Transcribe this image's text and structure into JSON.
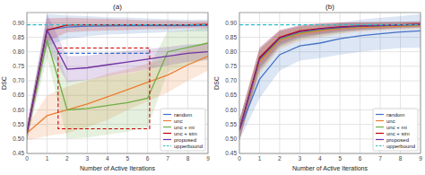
{
  "chart_data": [
    {
      "type": "line",
      "title": "(a)",
      "x_label": "Number of Active Iterations",
      "y_label": "DSC",
      "x": [
        0,
        1,
        2,
        3,
        4,
        5,
        6,
        7,
        8,
        9
      ],
      "xlim": [
        0,
        9
      ],
      "ylim": [
        0.45,
        0.935
      ],
      "xticks": [
        0,
        1,
        2,
        3,
        4,
        5,
        6,
        7,
        8,
        9
      ],
      "yticks": [
        0.45,
        {
          "value": 0.5,
          "label": "0.50"
        },
        0.55,
        {
          "value": 0.6,
          "label": "0.60"
        },
        0.65,
        {
          "value": 0.7,
          "label": "0.70"
        },
        0.75,
        {
          "value": 0.8,
          "label": "0.80"
        },
        0.85,
        {
          "value": 0.9,
          "label": "0.90"
        }
      ],
      "grid": true,
      "legend": "lower right",
      "series": [
        {
          "name": "random",
          "color": "#4472C4",
          "values": [
            0.52,
            0.875,
            0.885,
            0.888,
            0.889,
            0.89,
            0.89,
            0.89,
            0.89,
            0.891
          ],
          "std": [
            0.025,
            0.055,
            0.04,
            0.035,
            0.03,
            0.028,
            0.025,
            0.022,
            0.02,
            0.02
          ]
        },
        {
          "name": "unc",
          "color": "#ED7D31",
          "values": [
            0.52,
            0.58,
            0.6,
            0.62,
            0.645,
            0.67,
            0.695,
            0.72,
            0.755,
            0.785
          ],
          "std": [
            0.025,
            0.07,
            0.08,
            0.08,
            0.08,
            0.07,
            0.065,
            0.06,
            0.055,
            0.05
          ]
        },
        {
          "name": "unc + mi",
          "color": "#70AD47",
          "values": [
            0.52,
            0.84,
            0.6,
            0.605,
            0.615,
            0.625,
            0.64,
            0.8,
            0.815,
            0.83
          ],
          "std": [
            0.025,
            0.06,
            0.1,
            0.1,
            0.1,
            0.1,
            0.1,
            0.07,
            0.06,
            0.055
          ]
        },
        {
          "name": "unc + sim",
          "color": "#C00000",
          "values": [
            0.52,
            0.875,
            0.892,
            0.893,
            0.893,
            0.893,
            0.893,
            0.893,
            0.893,
            0.894
          ],
          "std": [
            0.025,
            0.04,
            0.025,
            0.022,
            0.02,
            0.018,
            0.015,
            0.015,
            0.012,
            0.012
          ]
        },
        {
          "name": "proposed",
          "color": "#7030A0",
          "values": [
            0.52,
            0.875,
            0.74,
            0.745,
            0.755,
            0.765,
            0.775,
            0.785,
            0.795,
            0.8
          ],
          "std": [
            0.025,
            0.055,
            0.045,
            0.042,
            0.04,
            0.038,
            0.035,
            0.032,
            0.03,
            0.028
          ]
        }
      ],
      "upperbound": {
        "name": "upperbound",
        "value": 0.893,
        "color": "#2BBCCA",
        "line_style": "dashed"
      },
      "annotations": [
        {
          "type": "rect",
          "x": [
            1.55,
            6.1
          ],
          "y": [
            0.535,
            0.813
          ],
          "color": "#CC0000",
          "line_style": "dashed"
        },
        {
          "type": "segment",
          "x": [
            1.55,
            6.1
          ],
          "y": [
            0.795,
            0.795
          ],
          "color": "#3366CC",
          "line_style": "dashed"
        }
      ]
    },
    {
      "type": "line",
      "title": "(b)",
      "x_label": "Number of Active Iterations",
      "y_label": "DSC",
      "x": [
        0,
        1,
        2,
        3,
        4,
        5,
        6,
        7,
        8,
        9
      ],
      "xlim": [
        0,
        9
      ],
      "ylim": [
        0.45,
        0.935
      ],
      "xticks": [
        0,
        1,
        2,
        3,
        4,
        5,
        6,
        7,
        8,
        9
      ],
      "yticks": [
        0.45,
        {
          "value": 0.5,
          "label": "0.50"
        },
        0.55,
        {
          "value": 0.6,
          "label": "0.60"
        },
        0.65,
        {
          "value": 0.7,
          "label": "0.70"
        },
        0.75,
        {
          "value": 0.8,
          "label": "0.80"
        },
        0.85,
        {
          "value": 0.9,
          "label": "0.90"
        }
      ],
      "grid": true,
      "legend": "lower right",
      "series": [
        {
          "name": "random",
          "color": "#4472C4",
          "values": [
            0.53,
            0.705,
            0.79,
            0.82,
            0.83,
            0.845,
            0.855,
            0.862,
            0.868,
            0.872
          ],
          "std": [
            0.035,
            0.065,
            0.055,
            0.05,
            0.052,
            0.055,
            0.055,
            0.055,
            0.055,
            0.058
          ]
        },
        {
          "name": "unc",
          "color": "#ED7D31",
          "values": [
            0.53,
            0.765,
            0.84,
            0.862,
            0.872,
            0.88,
            0.884,
            0.886,
            0.888,
            0.89
          ],
          "std": [
            0.035,
            0.04,
            0.03,
            0.025,
            0.022,
            0.018,
            0.015,
            0.013,
            0.012,
            0.012
          ]
        },
        {
          "name": "unc + mi",
          "color": "#70AD47",
          "values": [
            0.53,
            0.77,
            0.843,
            0.865,
            0.875,
            0.882,
            0.887,
            0.889,
            0.891,
            0.893
          ],
          "std": [
            0.035,
            0.038,
            0.028,
            0.022,
            0.02,
            0.017,
            0.014,
            0.012,
            0.011,
            0.01
          ]
        },
        {
          "name": "unc + sim",
          "color": "#C00000",
          "values": [
            0.53,
            0.78,
            0.85,
            0.872,
            0.88,
            0.886,
            0.889,
            0.891,
            0.893,
            0.895
          ],
          "std": [
            0.035,
            0.035,
            0.025,
            0.02,
            0.018,
            0.015,
            0.013,
            0.012,
            0.01,
            0.01
          ]
        },
        {
          "name": "proposed",
          "color": "#7030A0",
          "values": [
            0.53,
            0.775,
            0.847,
            0.869,
            0.878,
            0.884,
            0.888,
            0.89,
            0.892,
            0.894
          ],
          "std": [
            0.035,
            0.038,
            0.027,
            0.022,
            0.019,
            0.016,
            0.014,
            0.012,
            0.011,
            0.01
          ]
        }
      ],
      "upperbound": {
        "name": "upperbound",
        "value": 0.893,
        "color": "#2BBCCA",
        "line_style": "dashed"
      }
    }
  ]
}
